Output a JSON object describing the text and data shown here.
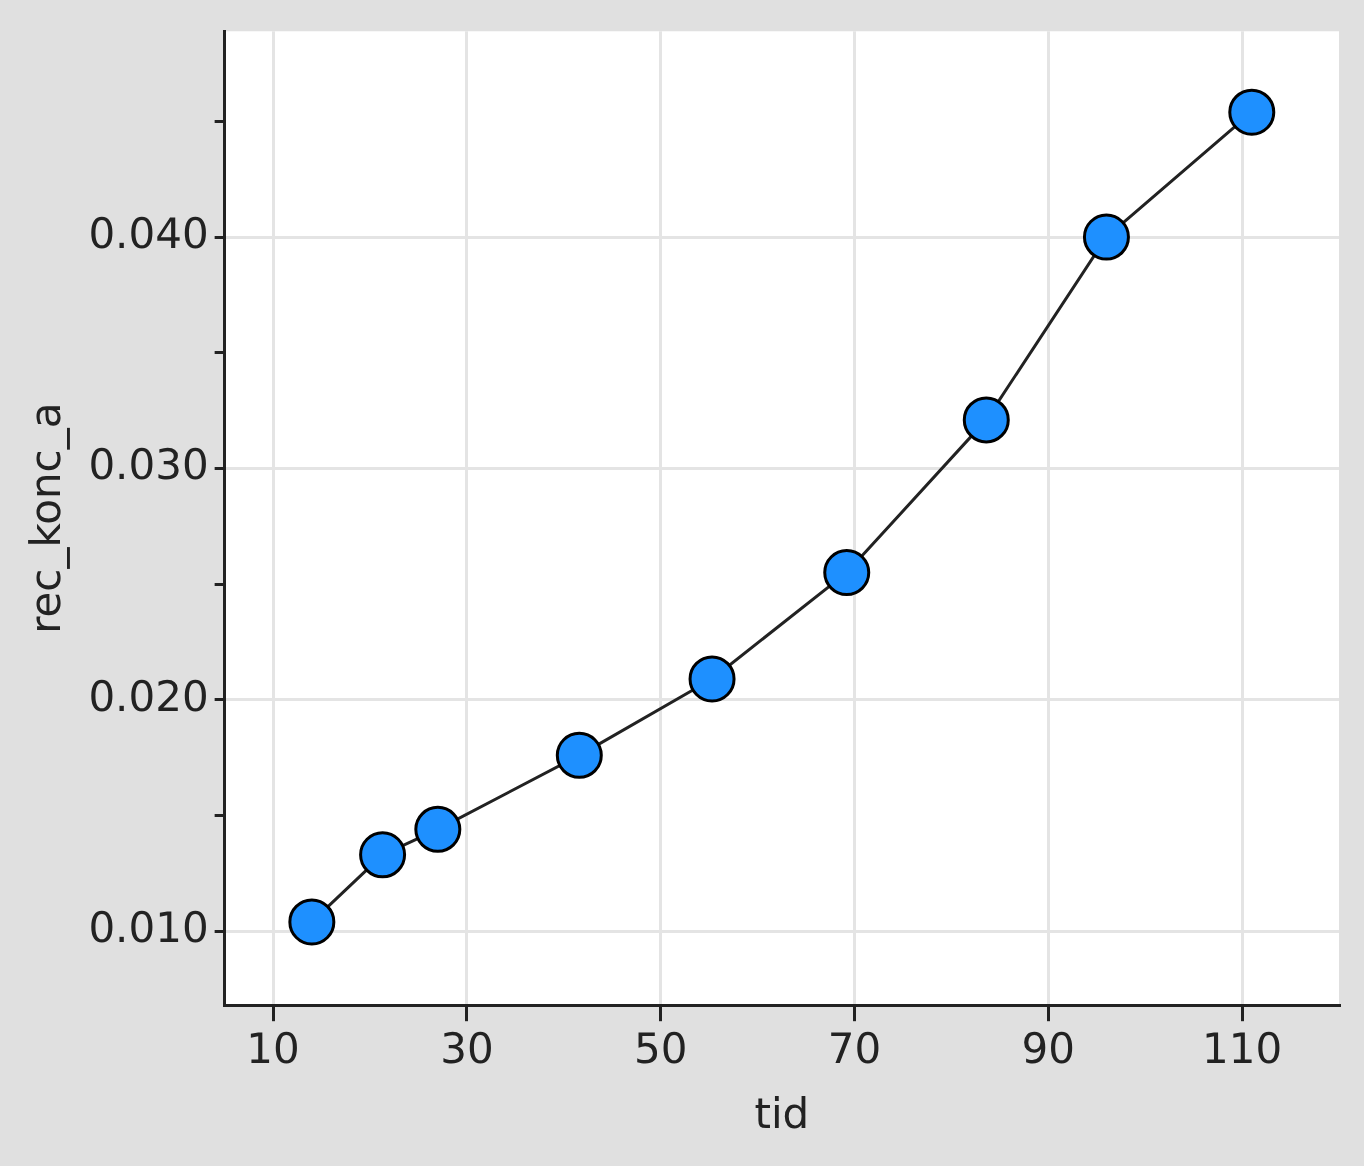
{
  "chart_data": {
    "type": "line",
    "xlabel": "tid",
    "ylabel": "rec_konc_a",
    "x": [
      14,
      21.3,
      27,
      41.6,
      55.3,
      69.2,
      83.6,
      96,
      111
    ],
    "series": [
      {
        "color": "#1e90ff",
        "values": [
          0.0104,
          0.0133,
          0.0144,
          0.0176,
          0.0209,
          0.0255,
          0.0321,
          0.04,
          0.0454
        ]
      }
    ],
    "xlim": [
      5,
      120
    ],
    "xticks": [
      10,
      30,
      50,
      70,
      90,
      110
    ],
    "ylim": [
      0.0068,
      0.0489
    ],
    "yticks": [
      {
        "value": 0.01,
        "label": "0.010"
      },
      {
        "value": 0.015,
        "label": null
      },
      {
        "value": 0.02,
        "label": "0.020"
      },
      {
        "value": 0.025,
        "label": null
      },
      {
        "value": 0.03,
        "label": "0.030"
      },
      {
        "value": 0.035,
        "label": null
      },
      {
        "value": 0.04,
        "label": "0.040"
      },
      {
        "value": 0.045,
        "label": null
      }
    ],
    "grid": true,
    "marker": "circle",
    "line_style": "solid",
    "legend": false
  }
}
